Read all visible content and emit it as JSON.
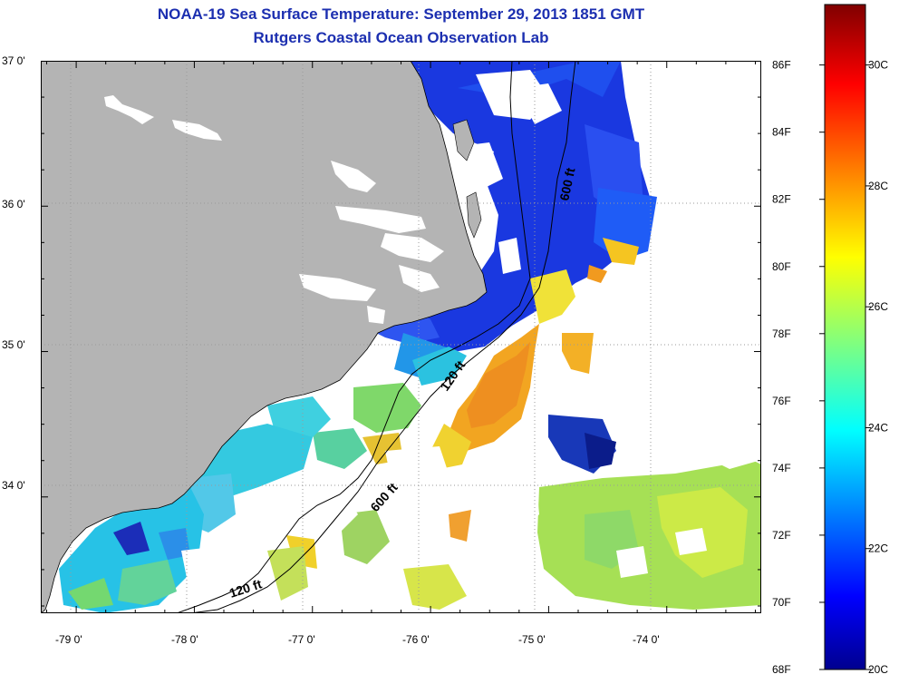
{
  "title": "NOAA-19 Sea Surface Temperature:  September 29, 2013 1851 GMT",
  "subtitle": "Rutgers Coastal Ocean Observation Lab",
  "map": {
    "lat_labels": [
      {
        "deg": 37,
        "text": "37 0'"
      },
      {
        "deg": 36,
        "text": "36 0'"
      },
      {
        "deg": 35,
        "text": "35 0'"
      },
      {
        "deg": 34,
        "text": "34 0'"
      }
    ],
    "lon_labels": [
      {
        "deg": -79,
        "text": "-79 0'"
      },
      {
        "deg": -78,
        "text": "-78 0'"
      },
      {
        "deg": -77,
        "text": "-77 0'"
      },
      {
        "deg": -76,
        "text": "-76 0'"
      },
      {
        "deg": -75,
        "text": "-75 0'"
      },
      {
        "deg": -74,
        "text": "-74 0'"
      }
    ],
    "lat_range": [
      33.2,
      37.0
    ],
    "lon_range": [
      -79.3,
      -73.2
    ],
    "isobath_labels": [
      {
        "text": "600 ft",
        "lon": -74.8,
        "lat": 36.2
      },
      {
        "text": "120 ft",
        "lon": -75.75,
        "lat": 34.8
      },
      {
        "text": "600 ft",
        "lon": -76.25,
        "lat": 33.95
      },
      {
        "text": "120 ft",
        "lon": -77.55,
        "lat": 33.32
      }
    ],
    "land_color": "#b4b4b4",
    "cloud_color": "#ffffff"
  },
  "colorbar": {
    "fahrenheit_labels": [
      "86F",
      "84F",
      "82F",
      "80F",
      "78F",
      "76F",
      "74F",
      "72F",
      "70F",
      "68F"
    ],
    "celsius_labels": [
      "30C",
      "28C",
      "26C",
      "24C",
      "22C",
      "20C"
    ],
    "f_range": [
      68,
      87.8
    ],
    "c_range": [
      20,
      31
    ]
  }
}
